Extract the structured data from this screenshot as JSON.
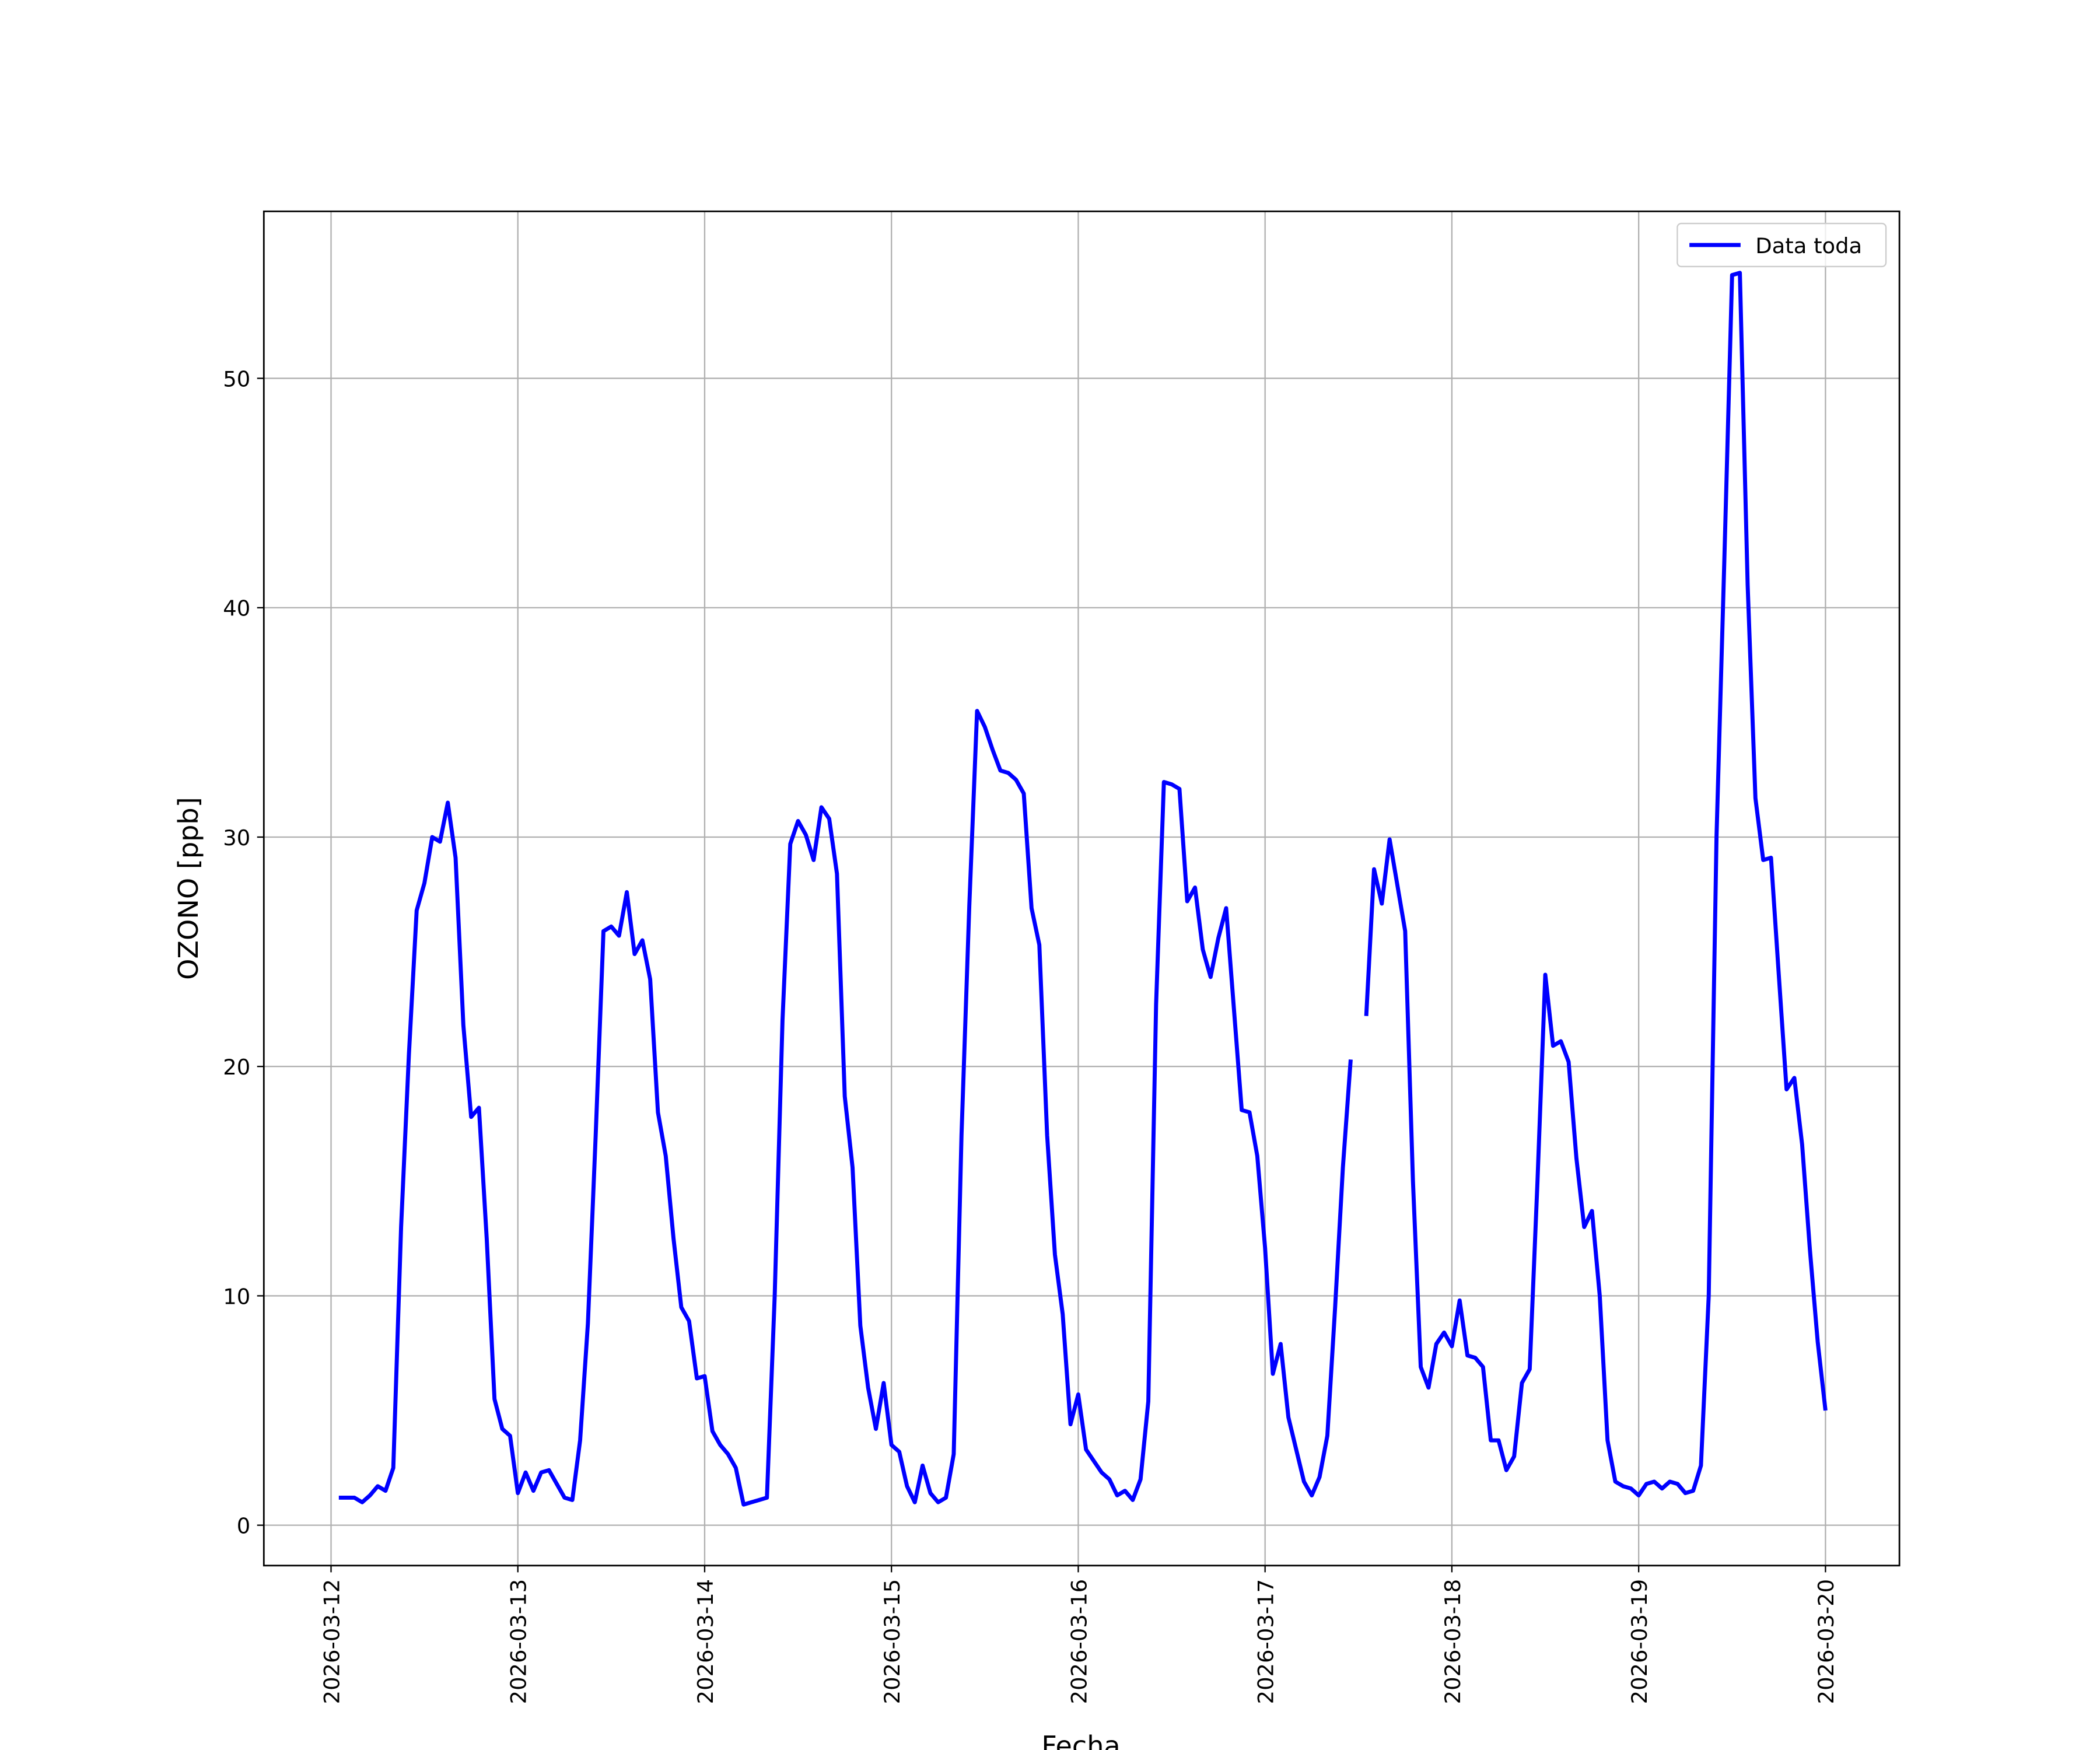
{
  "chart_data": {
    "type": "line",
    "xlabel": "Fecha",
    "ylabel": "OZONO [ppb]",
    "x": [
      "2026-03-12 01:00",
      "2026-03-12 02:00",
      "2026-03-12 03:00",
      "2026-03-12 04:00",
      "2026-03-12 05:00",
      "2026-03-12 06:00",
      "2026-03-12 07:00",
      "2026-03-12 08:00",
      "2026-03-12 09:00",
      "2026-03-12 10:00",
      "2026-03-12 11:00",
      "2026-03-12 12:00",
      "2026-03-12 13:00",
      "2026-03-12 14:00",
      "2026-03-12 15:00",
      "2026-03-12 16:00",
      "2026-03-12 17:00",
      "2026-03-12 18:00",
      "2026-03-12 19:00",
      "2026-03-12 20:00",
      "2026-03-12 21:00",
      "2026-03-12 22:00",
      "2026-03-12 23:00",
      "2026-03-13 00:00",
      "2026-03-13 01:00",
      "2026-03-13 02:00",
      "2026-03-13 03:00",
      "2026-03-13 04:00",
      "2026-03-13 05:00",
      "2026-03-13 06:00",
      "2026-03-13 07:00",
      "2026-03-13 08:00",
      "2026-03-13 09:00",
      "2026-03-13 10:00",
      "2026-03-13 11:00",
      "2026-03-13 12:00",
      "2026-03-13 13:00",
      "2026-03-13 14:00",
      "2026-03-13 15:00",
      "2026-03-13 16:00",
      "2026-03-13 17:00",
      "2026-03-13 18:00",
      "2026-03-13 19:00",
      "2026-03-13 20:00",
      "2026-03-13 21:00",
      "2026-03-13 22:00",
      "2026-03-13 23:00",
      "2026-03-14 00:00",
      "2026-03-14 01:00",
      "2026-03-14 02:00",
      "2026-03-14 03:00",
      "2026-03-14 04:00",
      "2026-03-14 05:00",
      "2026-03-14 06:00",
      "2026-03-14 07:00",
      "2026-03-14 08:00",
      "2026-03-14 09:00",
      "2026-03-14 10:00",
      "2026-03-14 11:00",
      "2026-03-14 12:00",
      "2026-03-14 13:00",
      "2026-03-14 14:00",
      "2026-03-14 15:00",
      "2026-03-14 16:00",
      "2026-03-14 17:00",
      "2026-03-14 18:00",
      "2026-03-14 19:00",
      "2026-03-14 20:00",
      "2026-03-14 21:00",
      "2026-03-14 22:00",
      "2026-03-14 23:00",
      "2026-03-15 00:00",
      "2026-03-15 01:00",
      "2026-03-15 02:00",
      "2026-03-15 03:00",
      "2026-03-15 04:00",
      "2026-03-15 05:00",
      "2026-03-15 06:00",
      "2026-03-15 07:00",
      "2026-03-15 08:00",
      "2026-03-15 09:00",
      "2026-03-15 10:00",
      "2026-03-15 11:00",
      "2026-03-15 12:00",
      "2026-03-15 13:00",
      "2026-03-15 14:00",
      "2026-03-15 15:00",
      "2026-03-15 16:00",
      "2026-03-15 17:00",
      "2026-03-15 18:00",
      "2026-03-15 19:00",
      "2026-03-15 20:00",
      "2026-03-15 21:00",
      "2026-03-15 22:00",
      "2026-03-15 23:00",
      "2026-03-16 00:00",
      "2026-03-16 01:00",
      "2026-03-16 02:00",
      "2026-03-16 03:00",
      "2026-03-16 04:00",
      "2026-03-16 05:00",
      "2026-03-16 06:00",
      "2026-03-16 07:00",
      "2026-03-16 08:00",
      "2026-03-16 09:00",
      "2026-03-16 10:00",
      "2026-03-16 11:00",
      "2026-03-16 12:00",
      "2026-03-16 13:00",
      "2026-03-16 14:00",
      "2026-03-16 15:00",
      "2026-03-16 16:00",
      "2026-03-16 17:00",
      "2026-03-16 18:00",
      "2026-03-16 19:00",
      "2026-03-16 20:00",
      "2026-03-16 21:00",
      "2026-03-16 22:00",
      "2026-03-16 23:00",
      "2026-03-17 00:00",
      "2026-03-17 01:00",
      "2026-03-17 02:00",
      "2026-03-17 03:00",
      "2026-03-17 04:00",
      "2026-03-17 05:00",
      "2026-03-17 06:00",
      "2026-03-17 07:00",
      "2026-03-17 08:00",
      "2026-03-17 09:00",
      "2026-03-17 10:00",
      "2026-03-17 11:00",
      "2026-03-17 12:00",
      "2026-03-17 13:00",
      "2026-03-17 14:00",
      "2026-03-17 15:00",
      "2026-03-17 16:00",
      "2026-03-17 17:00",
      "2026-03-17 18:00",
      "2026-03-17 19:00",
      "2026-03-17 20:00",
      "2026-03-17 21:00",
      "2026-03-17 22:00",
      "2026-03-17 23:00",
      "2026-03-18 00:00",
      "2026-03-18 01:00",
      "2026-03-18 02:00",
      "2026-03-18 03:00",
      "2026-03-18 04:00",
      "2026-03-18 05:00",
      "2026-03-18 06:00",
      "2026-03-18 07:00",
      "2026-03-18 08:00",
      "2026-03-18 09:00",
      "2026-03-18 10:00",
      "2026-03-18 11:00",
      "2026-03-18 12:00",
      "2026-03-18 13:00",
      "2026-03-18 14:00",
      "2026-03-18 15:00",
      "2026-03-18 16:00",
      "2026-03-18 17:00",
      "2026-03-18 18:00",
      "2026-03-18 19:00",
      "2026-03-18 20:00",
      "2026-03-18 21:00",
      "2026-03-18 22:00",
      "2026-03-18 23:00",
      "2026-03-19 00:00",
      "2026-03-19 01:00",
      "2026-03-19 02:00",
      "2026-03-19 03:00",
      "2026-03-19 04:00",
      "2026-03-19 05:00",
      "2026-03-19 06:00",
      "2026-03-19 07:00",
      "2026-03-19 08:00",
      "2026-03-19 09:00",
      "2026-03-19 10:00",
      "2026-03-19 11:00",
      "2026-03-19 12:00",
      "2026-03-19 13:00",
      "2026-03-19 14:00",
      "2026-03-19 15:00",
      "2026-03-19 16:00",
      "2026-03-19 17:00",
      "2026-03-19 18:00",
      "2026-03-19 19:00",
      "2026-03-19 20:00",
      "2026-03-19 21:00",
      "2026-03-19 22:00",
      "2026-03-19 23:00",
      "2026-03-20 00:00"
    ],
    "series": [
      {
        "name": "Data toda",
        "color": "#0000ff",
        "values": [
          1.2,
          1.2,
          1.2,
          1.0,
          1.3,
          1.7,
          1.5,
          2.5,
          13,
          20.5,
          26.8,
          28,
          30,
          29.8,
          31.5,
          29.1,
          21.8,
          17.8,
          18.2,
          12.5,
          5.5,
          4.2,
          3.9,
          1.4,
          2.3,
          1.5,
          2.3,
          2.4,
          1.8,
          1.2,
          1.1,
          3.7,
          8.8,
          17,
          25.9,
          26.1,
          25.7,
          27.6,
          24.9,
          25.5,
          23.8,
          18,
          16.1,
          12.5,
          9.5,
          8.9,
          6.4,
          6.5,
          4.1,
          3.5,
          3.1,
          2.5,
          0.9,
          1.0,
          1.1,
          1.2,
          10,
          22,
          29.7,
          30.7,
          30.1,
          29,
          31.3,
          30.8,
          28.4,
          18.7,
          15.6,
          8.7,
          6,
          4.2,
          6.2,
          3.5,
          3.2,
          1.7,
          1.0,
          2.6,
          1.4,
          1.0,
          1.2,
          3.1,
          17,
          27,
          35.5,
          34.8,
          33.8,
          32.9,
          32.8,
          32.5,
          31.9,
          26.9,
          25.3,
          17,
          11.8,
          9.2,
          4.4,
          5.7,
          3.3,
          2.8,
          2.3,
          2.0,
          1.3,
          1.5,
          1.1,
          2.0,
          5.4,
          22.7,
          32.4,
          32.3,
          32.1,
          27.2,
          27.8,
          25.1,
          23.9,
          25.6,
          26.9,
          22.5,
          18.1,
          18,
          16.1,
          12.1,
          6.6,
          7.9,
          4.7,
          3.3,
          1.9,
          1.3,
          2.1,
          3.9,
          9.5,
          15.6,
          20.3,
          null,
          22.2,
          28.6,
          27.1,
          29.9,
          27.9,
          25.9,
          15,
          6.9,
          6.0,
          7.9,
          8.4,
          7.8,
          9.8,
          7.4,
          7.3,
          6.9,
          3.7,
          3.7,
          2.4,
          3.0,
          6.2,
          6.8,
          15,
          24,
          20.9,
          21.1,
          20.2,
          16,
          13,
          13.7,
          10,
          3.7,
          1.9,
          1.7,
          1.6,
          1.3,
          1.8,
          1.9,
          1.6,
          1.9,
          1.8,
          1.4,
          1.5,
          2.6,
          10,
          30,
          42,
          54.5,
          54.6,
          41,
          31.7,
          29,
          29.1,
          24,
          19,
          19.5,
          16.6,
          12,
          8,
          5
        ]
      }
    ],
    "xlim": [
      "2026-03-11 15:22",
      "2026-03-20 09:30"
    ],
    "xticks": [
      "2026-03-12",
      "2026-03-13",
      "2026-03-14",
      "2026-03-15",
      "2026-03-16",
      "2026-03-17",
      "2026-03-18",
      "2026-03-19",
      "2026-03-20"
    ],
    "ylim": [
      -1.76,
      57.28
    ],
    "yticks": [
      0,
      10,
      20,
      30,
      40,
      50
    ],
    "grid": true,
    "legend": "upper right"
  }
}
